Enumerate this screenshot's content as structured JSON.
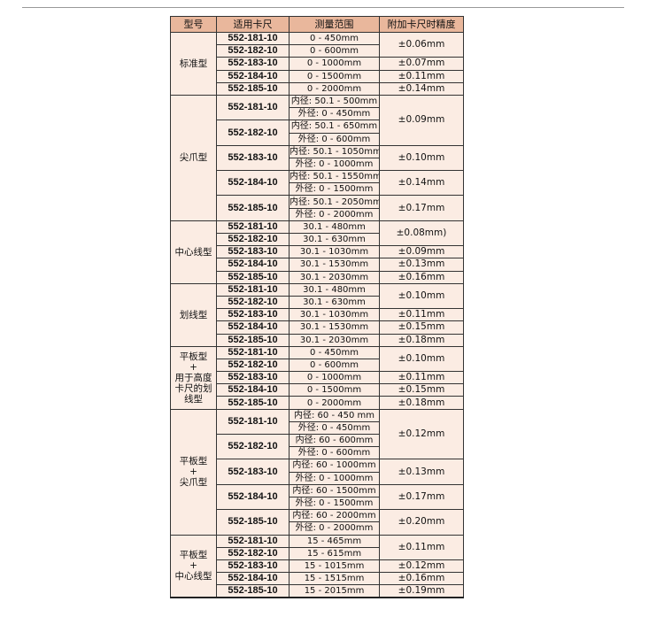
{
  "header": [
    "型号",
    "适用卡尺",
    "测量范围",
    "附加卡尺时精度"
  ],
  "groups": [
    {
      "type": [
        "标准型"
      ],
      "accuracy_groups": [
        {
          "accuracy": "±0.06mm",
          "models": [
            {
              "model": "552-181-10",
              "ranges": [
                "0 - 450mm"
              ]
            },
            {
              "model": "552-182-10",
              "ranges": [
                "0 - 600mm"
              ]
            }
          ]
        },
        {
          "accuracy": "±0.07mm",
          "models": [
            {
              "model": "552-183-10",
              "ranges": [
                "0 - 1000mm"
              ]
            }
          ]
        },
        {
          "accuracy": "±0.11mm",
          "models": [
            {
              "model": "552-184-10",
              "ranges": [
                "0 - 1500mm"
              ]
            }
          ]
        },
        {
          "accuracy": "±0.14mm",
          "models": [
            {
              "model": "552-185-10",
              "ranges": [
                "0 - 2000mm"
              ]
            }
          ]
        }
      ]
    },
    {
      "type": [
        "尖爪型"
      ],
      "accuracy_groups": [
        {
          "accuracy": "±0.09mm",
          "models": [
            {
              "model": "552-181-10",
              "ranges": [
                "内径: 50.1 - 500mm",
                "外径: 0 - 450mm"
              ]
            },
            {
              "model": "552-182-10",
              "ranges": [
                "内径: 50.1 - 650mm",
                "外径: 0 - 600mm"
              ]
            }
          ]
        },
        {
          "accuracy": "±0.10mm",
          "models": [
            {
              "model": "552-183-10",
              "ranges": [
                "内径: 50.1 - 1050mm",
                "外径: 0 - 1000mm"
              ]
            }
          ]
        },
        {
          "accuracy": "±0.14mm",
          "models": [
            {
              "model": "552-184-10",
              "ranges": [
                "内径: 50.1 - 1550mm",
                "外径: 0 - 1500mm"
              ]
            }
          ]
        },
        {
          "accuracy": "±0.17mm",
          "models": [
            {
              "model": "552-185-10",
              "ranges": [
                "内径: 50.1 - 2050mm",
                "外径: 0 - 2000mm"
              ]
            }
          ]
        }
      ]
    },
    {
      "type": [
        "中心线型"
      ],
      "accuracy_groups": [
        {
          "accuracy": "±0.08mm)",
          "models": [
            {
              "model": "552-181-10",
              "ranges": [
                "30.1 - 480mm"
              ]
            },
            {
              "model": "552-182-10",
              "ranges": [
                "30.1 - 630mm"
              ]
            }
          ]
        },
        {
          "accuracy": "±0.09mm",
          "models": [
            {
              "model": "552-183-10",
              "ranges": [
                "30.1 - 1030mm"
              ]
            }
          ]
        },
        {
          "accuracy": "±0.13mm",
          "models": [
            {
              "model": "552-184-10",
              "ranges": [
                "30.1 - 1530mm"
              ]
            }
          ]
        },
        {
          "accuracy": "±0.16mm",
          "models": [
            {
              "model": "552-185-10",
              "ranges": [
                "30.1 - 2030mm"
              ]
            }
          ]
        }
      ]
    },
    {
      "type": [
        "划线型"
      ],
      "accuracy_groups": [
        {
          "accuracy": "±0.10mm",
          "models": [
            {
              "model": "552-181-10",
              "ranges": [
                "30.1 - 480mm"
              ]
            },
            {
              "model": "552-182-10",
              "ranges": [
                "30.1 - 630mm"
              ]
            }
          ]
        },
        {
          "accuracy": "±0.11mm",
          "models": [
            {
              "model": "552-183-10",
              "ranges": [
                "30.1 - 1030mm"
              ]
            }
          ]
        },
        {
          "accuracy": "±0.15mm",
          "models": [
            {
              "model": "552-184-10",
              "ranges": [
                "30.1 - 1530mm"
              ]
            }
          ]
        },
        {
          "accuracy": "±0.18mm",
          "models": [
            {
              "model": "552-185-10",
              "ranges": [
                "30.1 - 2030mm"
              ]
            }
          ]
        }
      ]
    },
    {
      "type": [
        "平板型",
        "+",
        "用于高度",
        "卡尺的划",
        "线型"
      ],
      "accuracy_groups": [
        {
          "accuracy": "±0.10mm",
          "models": [
            {
              "model": "552-181-10",
              "ranges": [
                "0 - 450mm"
              ]
            },
            {
              "model": "552-182-10",
              "ranges": [
                "0 - 600mm"
              ]
            }
          ]
        },
        {
          "accuracy": "±0.11mm",
          "models": [
            {
              "model": "552-183-10",
              "ranges": [
                "0 - 1000mm"
              ]
            }
          ]
        },
        {
          "accuracy": "±0.15mm",
          "models": [
            {
              "model": "552-184-10",
              "ranges": [
                "0 - 1500mm"
              ]
            }
          ]
        },
        {
          "accuracy": "±0.18mm",
          "models": [
            {
              "model": "552-185-10",
              "ranges": [
                "0 - 2000mm"
              ]
            }
          ]
        }
      ]
    },
    {
      "type": [
        "平板型",
        "+",
        "尖爪型"
      ],
      "accuracy_groups": [
        {
          "accuracy": "±0.12mm",
          "models": [
            {
              "model": "552-181-10",
              "ranges": [
                "内径: 60 - 450 mm",
                "外径: 0 - 450mm"
              ]
            },
            {
              "model": "552-182-10",
              "ranges": [
                "内径: 60 - 600mm",
                "外径: 0 - 600mm"
              ]
            }
          ]
        },
        {
          "accuracy": "±0.13mm",
          "models": [
            {
              "model": "552-183-10",
              "ranges": [
                "内径: 60 - 1000mm",
                "外径: 0 - 1000mm"
              ]
            }
          ]
        },
        {
          "accuracy": "±0.17mm",
          "models": [
            {
              "model": "552-184-10",
              "ranges": [
                "内径: 60 - 1500mm",
                "外径: 0 - 1500mm"
              ]
            }
          ]
        },
        {
          "accuracy": "±0.20mm",
          "models": [
            {
              "model": "552-185-10",
              "ranges": [
                "内径: 60 - 2000mm",
                "外径: 0 - 2000mm"
              ]
            }
          ]
        }
      ]
    },
    {
      "type": [
        "平板型",
        "+",
        "中心线型"
      ],
      "accuracy_groups": [
        {
          "accuracy": "±0.11mm",
          "models": [
            {
              "model": "552-181-10",
              "ranges": [
                "15 - 465mm"
              ]
            },
            {
              "model": "552-182-10",
              "ranges": [
                "15 - 615mm"
              ]
            }
          ]
        },
        {
          "accuracy": "±0.12mm",
          "models": [
            {
              "model": "552-183-10",
              "ranges": [
                "15 - 1015mm"
              ]
            }
          ]
        },
        {
          "accuracy": "±0.16mm",
          "models": [
            {
              "model": "552-184-10",
              "ranges": [
                "15 - 1515mm"
              ]
            }
          ]
        },
        {
          "accuracy": "±0.19mm",
          "models": [
            {
              "model": "552-185-10",
              "ranges": [
                "15 - 2015mm"
              ]
            }
          ]
        }
      ]
    }
  ]
}
